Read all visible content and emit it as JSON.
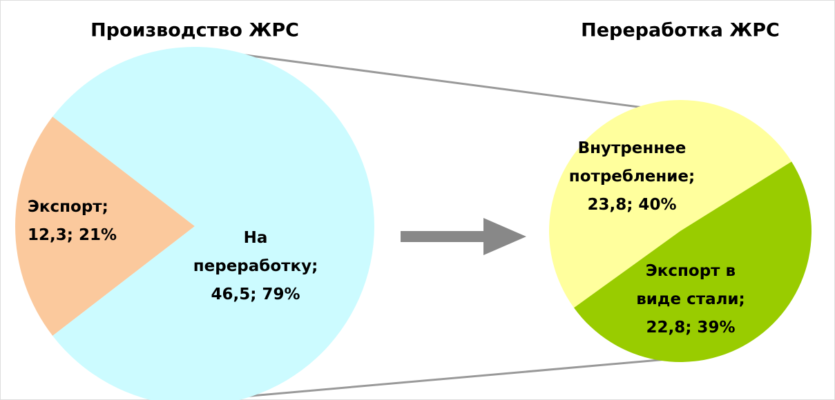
{
  "chart_data": [
    {
      "type": "pie",
      "title": "Производство ЖРС",
      "categories": [
        "Экспорт;",
        "На переработку;"
      ],
      "values": [
        12.3,
        46.5
      ],
      "value_labels": [
        "12,3; 21%",
        "46,5; 79%"
      ],
      "colors": [
        "#fbc99d",
        "#ccfbff"
      ]
    },
    {
      "type": "pie",
      "title": "Переработка ЖРС",
      "categories": [
        "Внутреннее потребление;",
        "Экспорт в виде стали;"
      ],
      "values": [
        23.8,
        22.8
      ],
      "value_labels": [
        "23,8; 40%",
        "22,8; 39%"
      ],
      "colors": [
        "#ffff9d",
        "#99cc00"
      ]
    }
  ]
}
